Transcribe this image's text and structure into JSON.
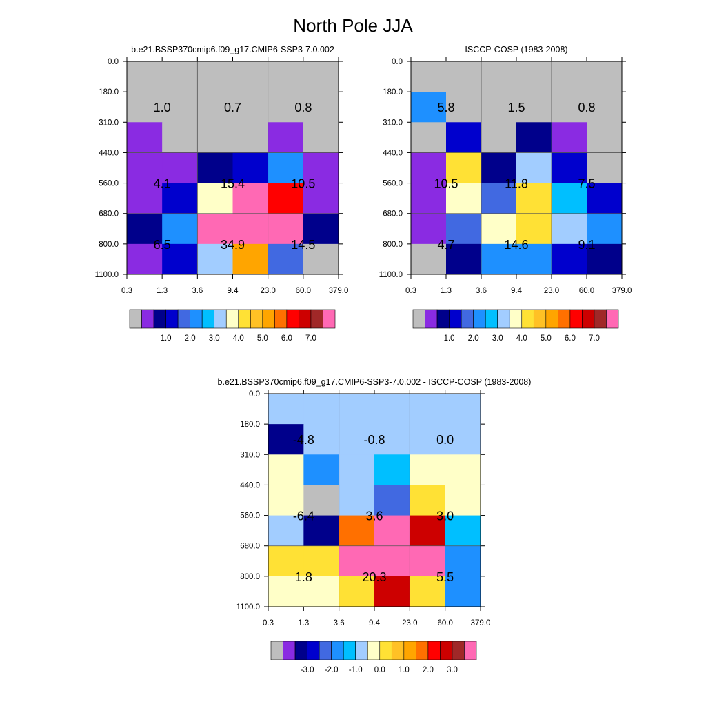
{
  "figure": {
    "title": "North Pole JJA"
  },
  "colorbars": {
    "abs": {
      "colors": [
        "#bebebe",
        "#8a2be2",
        "#00008b",
        "#0000cd",
        "#4169e1",
        "#1e90ff",
        "#00bfff",
        "#a2cdff",
        "#ffffc8",
        "#ffe135",
        "#ffc125",
        "#ffa500",
        "#ff7000",
        "#ff0000",
        "#cd0000",
        "#a02828",
        "#ff69b4"
      ],
      "labels": [
        "1.0",
        "2.0",
        "3.0",
        "4.0",
        "5.0",
        "6.0",
        "7.0"
      ]
    },
    "diff": {
      "colors": [
        "#bebebe",
        "#8a2be2",
        "#00008b",
        "#0000cd",
        "#4169e1",
        "#1e90ff",
        "#00bfff",
        "#a2cdff",
        "#ffffc8",
        "#ffe135",
        "#ffc125",
        "#ffa500",
        "#ff7000",
        "#ff0000",
        "#cd0000",
        "#a02828",
        "#ff69b4"
      ],
      "labels": [
        "-3.0",
        "-2.0",
        "-1.0",
        "0.0",
        "1.0",
        "2.0",
        "3.0"
      ]
    }
  },
  "chart_data": [
    {
      "type": "heatmap",
      "title": "b.e21.BSSP370cmip6.f09_g17.CMIP6-SSP3-7.0.002",
      "x_ticks": [
        "0.3",
        "1.3",
        "3.6",
        "9.4",
        "23.0",
        "60.0",
        "379.0"
      ],
      "y_ticks": [
        "0.0",
        "180.0",
        "310.0",
        "440.0",
        "560.0",
        "680.0",
        "800.0",
        "1100.0"
      ],
      "colorbar": "abs",
      "cell_colors": [
        [
          "#bebebe",
          "#bebebe",
          "#bebebe",
          "#bebebe",
          "#bebebe",
          "#bebebe"
        ],
        [
          "#bebebe",
          "#bebebe",
          "#bebebe",
          "#bebebe",
          "#bebebe",
          "#bebebe"
        ],
        [
          "#8a2be2",
          "#bebebe",
          "#bebebe",
          "#bebebe",
          "#8a2be2",
          "#bebebe"
        ],
        [
          "#8a2be2",
          "#8a2be2",
          "#00008b",
          "#0000cd",
          "#1e90ff",
          "#8a2be2"
        ],
        [
          "#8a2be2",
          "#0000cd",
          "#ffffc8",
          "#ff69b4",
          "#ff0000",
          "#8a2be2"
        ],
        [
          "#00008b",
          "#1e90ff",
          "#ff69b4",
          "#ff69b4",
          "#ff69b4",
          "#00008b"
        ],
        [
          "#8a2be2",
          "#0000cd",
          "#a2cdff",
          "#ffa500",
          "#4169e1",
          "#bebebe"
        ]
      ],
      "totals": [
        "1.0",
        "0.7",
        "0.8",
        "4.1",
        "15.4",
        "10.5",
        "6.5",
        "34.9",
        "14.5"
      ]
    },
    {
      "type": "heatmap",
      "title": "ISCCP-COSP (1983-2008)",
      "x_ticks": [
        "0.3",
        "1.3",
        "3.6",
        "9.4",
        "23.0",
        "60.0",
        "379.0"
      ],
      "y_ticks": [
        "0.0",
        "180.0",
        "310.0",
        "440.0",
        "560.0",
        "680.0",
        "800.0",
        "1100.0"
      ],
      "colorbar": "abs",
      "cell_colors": [
        [
          "#bebebe",
          "#bebebe",
          "#bebebe",
          "#bebebe",
          "#bebebe",
          "#bebebe"
        ],
        [
          "#1e90ff",
          "#bebebe",
          "#bebebe",
          "#bebebe",
          "#bebebe",
          "#bebebe"
        ],
        [
          "#bebebe",
          "#0000cd",
          "#bebebe",
          "#00008b",
          "#8a2be2",
          "#bebebe"
        ],
        [
          "#8a2be2",
          "#ffe135",
          "#00008b",
          "#a2cdff",
          "#0000cd",
          "#bebebe"
        ],
        [
          "#8a2be2",
          "#ffffc8",
          "#4169e1",
          "#ffe135",
          "#00bfff",
          "#0000cd"
        ],
        [
          "#8a2be2",
          "#4169e1",
          "#ffffc8",
          "#ffe135",
          "#a2cdff",
          "#1e90ff"
        ],
        [
          "#bebebe",
          "#00008b",
          "#1e90ff",
          "#1e90ff",
          "#0000cd",
          "#00008b"
        ]
      ],
      "totals": [
        "5.8",
        "1.5",
        "0.8",
        "10.5",
        "11.8",
        "7.5",
        "4.7",
        "14.6",
        "9.1"
      ]
    },
    {
      "type": "heatmap",
      "title": "b.e21.BSSP370cmip6.f09_g17.CMIP6-SSP3-7.0.002 - ISCCP-COSP (1983-2008)",
      "x_ticks": [
        "0.3",
        "1.3",
        "3.6",
        "9.4",
        "23.0",
        "60.0",
        "379.0"
      ],
      "y_ticks": [
        "0.0",
        "180.0",
        "310.0",
        "440.0",
        "560.0",
        "680.0",
        "800.0",
        "1100.0"
      ],
      "colorbar": "diff",
      "cell_colors": [
        [
          "#a2cdff",
          "#a2cdff",
          "#a2cdff",
          "#a2cdff",
          "#a2cdff",
          "#a2cdff"
        ],
        [
          "#00008b",
          "#a2cdff",
          "#a2cdff",
          "#a2cdff",
          "#a2cdff",
          "#a2cdff"
        ],
        [
          "#ffffc8",
          "#1e90ff",
          "#a2cdff",
          "#00bfff",
          "#ffffc8",
          "#ffffc8"
        ],
        [
          "#ffffc8",
          "#bebebe",
          "#a2cdff",
          "#4169e1",
          "#ffe135",
          "#ffffc8"
        ],
        [
          "#a2cdff",
          "#00008b",
          "#ff7000",
          "#ff69b4",
          "#cd0000",
          "#00bfff"
        ],
        [
          "#ffe135",
          "#ffe135",
          "#ff69b4",
          "#ff69b4",
          "#ff69b4",
          "#1e90ff"
        ],
        [
          "#ffffc8",
          "#ffffc8",
          "#ffe135",
          "#cd0000",
          "#ffe135",
          "#1e90ff"
        ]
      ],
      "totals": [
        "-4.8",
        "-0.8",
        "0.0",
        "-6.4",
        "3.6",
        "3.0",
        "1.8",
        "20.3",
        "5.5"
      ]
    }
  ]
}
